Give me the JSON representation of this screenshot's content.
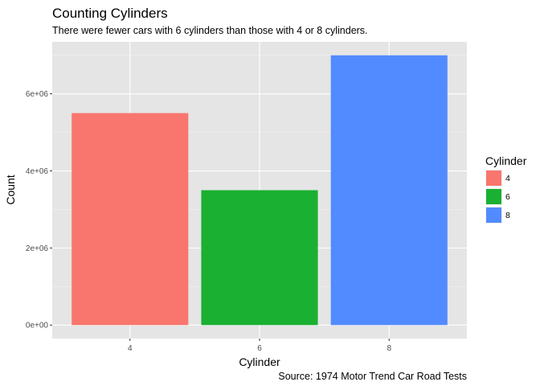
{
  "chart_data": {
    "type": "bar",
    "title": "Counting Cylinders",
    "subtitle": "There were fewer cars with 6 cylinders than those with 4 or 8 cylinders.",
    "caption": "Source: 1974 Motor Trend Car Road Tests",
    "xlabel": "Cylinder",
    "ylabel": "Count",
    "categories": [
      "4",
      "6",
      "8"
    ],
    "values": [
      5500000,
      3500000,
      7000000
    ],
    "colors": [
      "#F8766D",
      "#1AB032",
      "#528BFF"
    ],
    "ylim": [
      0,
      7000000
    ],
    "y_ticks": [
      0,
      2000000,
      4000000,
      6000000
    ],
    "y_tick_labels": [
      "0e+00",
      "2e+06",
      "4e+06",
      "6e+06"
    ],
    "grid": true,
    "panel_background": "#E5E5E5",
    "legend": {
      "title": "Cylinder",
      "position": "right",
      "entries": [
        "4",
        "6",
        "8"
      ]
    }
  }
}
